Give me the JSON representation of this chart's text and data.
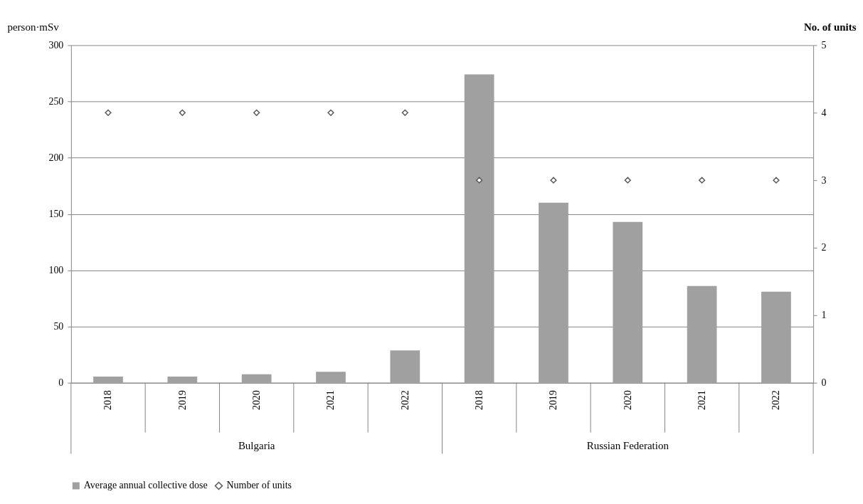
{
  "chart_data": {
    "type": "bar",
    "categories": [
      "2018",
      "2019",
      "2020",
      "2021",
      "2022",
      "2018",
      "2019",
      "2020",
      "2021",
      "2022"
    ],
    "series": [
      {
        "name": "Average annual collective dose",
        "color": "#a0a0a0",
        "values": [
          5.5,
          5.5,
          7.6,
          9.7,
          28.8,
          274,
          160,
          143,
          86,
          81
        ]
      },
      {
        "name": "Number of units",
        "type": "scatter",
        "axis": "y2",
        "marker": "diamond",
        "color": "#595959",
        "values": [
          4,
          4,
          4,
          4,
          4,
          3,
          3,
          3,
          3,
          3
        ]
      }
    ],
    "annotations": [
      "Bulgaria",
      "Russian Federation"
    ],
    "ylabel": "person·mSv",
    "y2label": "No. of units",
    "ylim": [
      0,
      300
    ],
    "yticks": [
      0,
      50,
      100,
      150,
      200,
      250,
      300
    ],
    "y2lim": [
      0,
      5
    ],
    "y2ticks": [
      0,
      1,
      2,
      3,
      4,
      5
    ],
    "grid": "y",
    "legend": "bottom"
  }
}
